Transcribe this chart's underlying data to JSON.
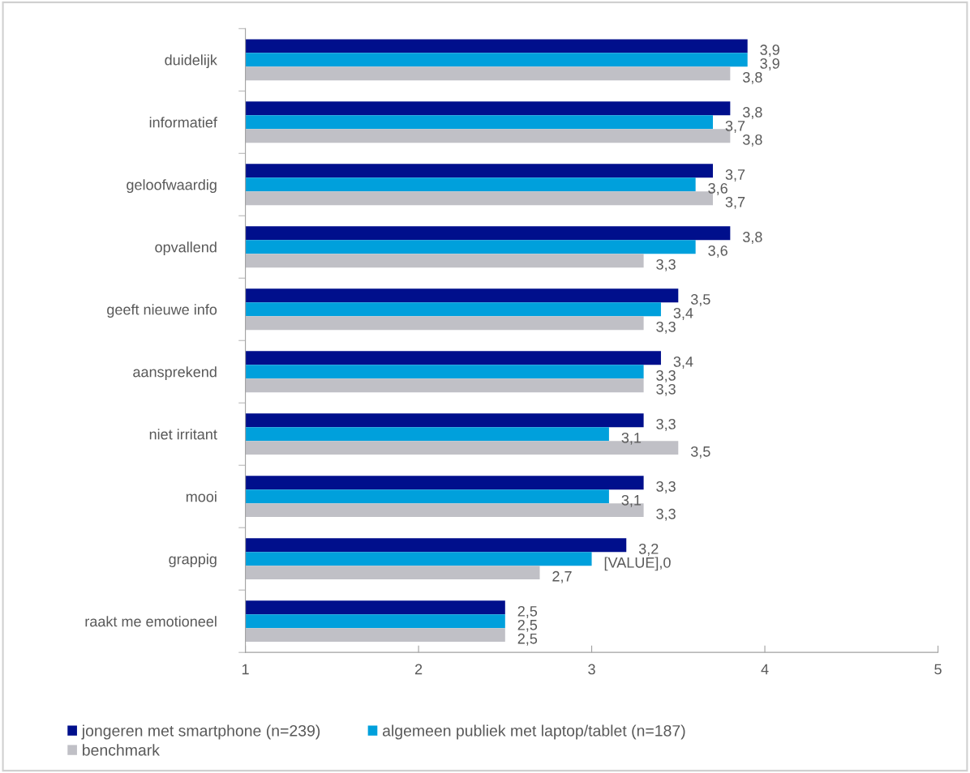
{
  "chart_data": {
    "type": "bar",
    "orientation": "horizontal",
    "categories": [
      "duidelijk",
      "informatief",
      "geloofwaardig",
      "opvallend",
      "geeft nieuwe info",
      "aansprekend",
      "niet irritant",
      "mooi",
      "grappig",
      "raakt me emotioneel"
    ],
    "series": [
      {
        "name": "jongeren met smartphone (n=239)",
        "color": "#000f8c",
        "values": [
          3.9,
          3.8,
          3.7,
          3.8,
          3.5,
          3.4,
          3.3,
          3.3,
          3.2,
          2.5
        ],
        "value_labels": [
          "3,9",
          "3,8",
          "3,7",
          "3,8",
          "3,5",
          "3,4",
          "3,3",
          "3,3",
          "3,2",
          "2,5"
        ]
      },
      {
        "name": "algemeen publiek met laptop/tablet (n=187)",
        "color": "#00a0dc",
        "values": [
          3.9,
          3.7,
          3.6,
          3.6,
          3.4,
          3.3,
          3.1,
          3.1,
          3.0,
          2.5
        ],
        "value_labels": [
          "3,9",
          "3,7",
          "3,6",
          "3,6",
          "3,4",
          "3,3",
          "3,1",
          "3,1",
          null,
          "2,5"
        ]
      },
      {
        "name": "benchmark",
        "color": "#c0c0c6",
        "values": [
          3.8,
          3.8,
          3.7,
          3.3,
          3.3,
          3.3,
          3.5,
          3.3,
          2.7,
          2.5
        ],
        "value_labels": [
          "3,8",
          "3,8",
          "3,7",
          "3,3",
          "3,3",
          "3,3",
          "3,5",
          "3,3",
          "2,7",
          "2,5"
        ]
      }
    ],
    "xlim": [
      1,
      5
    ],
    "xticks": [
      1,
      2,
      3,
      4,
      5
    ],
    "annotations": [
      {
        "text": "[VALUE],0",
        "x": 3.0,
        "y": "grappig"
      }
    ],
    "grid": false,
    "legend": "bottom"
  }
}
